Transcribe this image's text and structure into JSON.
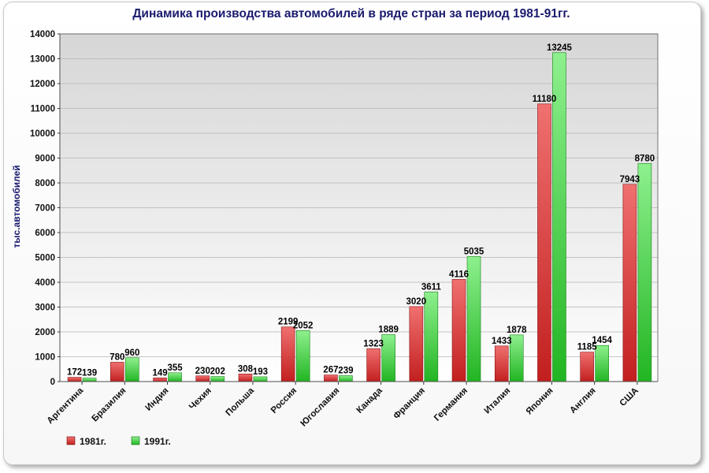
{
  "chart_data": {
    "type": "bar",
    "title": "Динамика производства автомобилей в ряде стран за период 1981-91гг.",
    "xlabel": "",
    "ylabel": "тыс.автомобилей",
    "ylim": [
      0,
      14000
    ],
    "yticks": [
      0,
      1000,
      2000,
      3000,
      4000,
      5000,
      6000,
      7000,
      8000,
      9000,
      10000,
      11000,
      12000,
      13000,
      14000
    ],
    "grid": true,
    "legend_position": "bottom-left",
    "categories": [
      "Аргентина",
      "Бразилия",
      "Индия",
      "Чехия",
      "Польша",
      "Россия",
      "Югославия",
      "Канада",
      "Франция",
      "Германия",
      "Италия",
      "Япония",
      "Англия",
      "США"
    ],
    "series": [
      {
        "name": "1981г.",
        "color": "#d42a2a",
        "values": [
          172,
          780,
          149,
          230,
          308,
          2199,
          267,
          1323,
          3020,
          4116,
          1433,
          11180,
          1185,
          7943
        ]
      },
      {
        "name": "1991г.",
        "color": "#2ec42e",
        "values": [
          139,
          960,
          355,
          202,
          193,
          2052,
          239,
          1889,
          3611,
          5035,
          1878,
          13245,
          1454,
          8780
        ]
      }
    ]
  }
}
